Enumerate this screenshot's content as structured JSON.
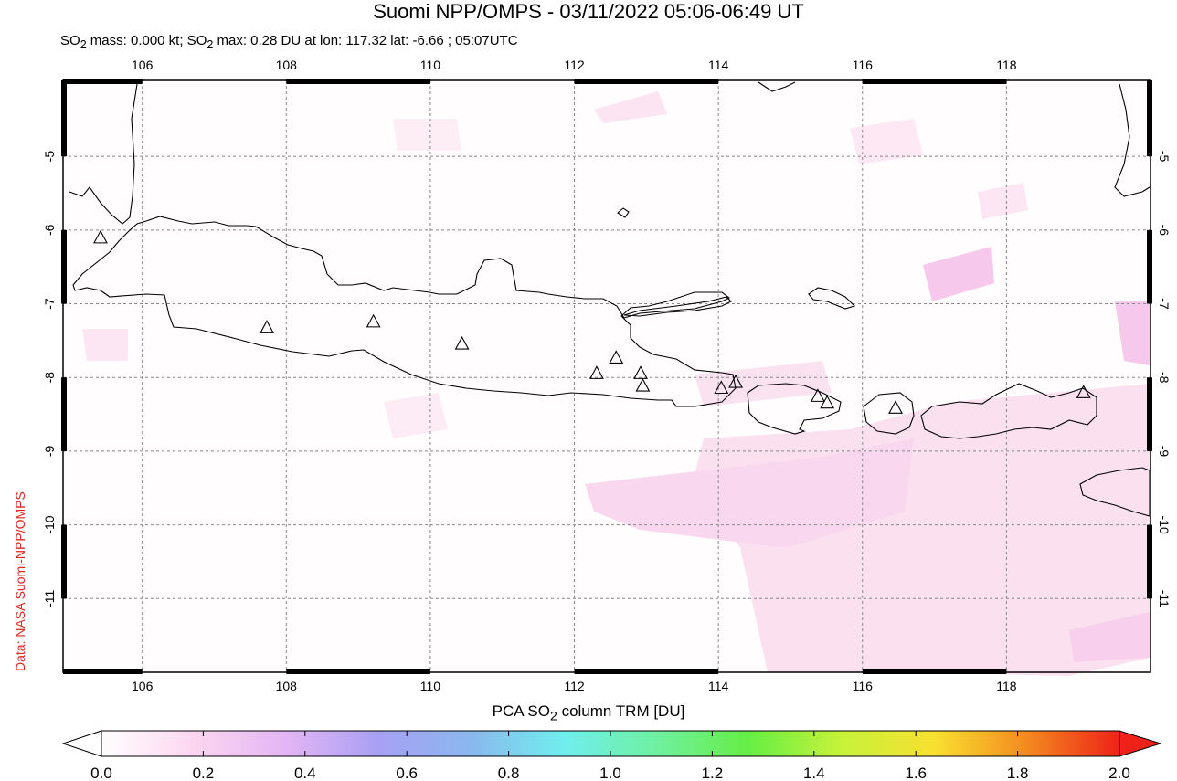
{
  "header": {
    "title": "Suomi NPP/OMPS - 03/11/2022 05:06-06:49 UT",
    "subtitle_html": "SO<sub>2</sub> mass: 0.000 kt; SO<sub>2</sub> max: 0.28 DU at lon: 117.32 lat: -6.66 ; 05:07UTC"
  },
  "credit": "Data: NASA Suomi-NPP/OMPS",
  "map": {
    "lon_range": [
      104.9,
      120.0
    ],
    "lat_range": [
      -12.0,
      -3.97
    ],
    "lon_ticks": [
      106,
      108,
      110,
      112,
      114,
      116,
      118
    ],
    "lat_ticks": [
      -5,
      -6,
      -7,
      -8,
      -9,
      -10,
      -11
    ],
    "colors": {
      "frame": "#000000",
      "grid": "#888888",
      "coast": "#000000",
      "low_so2": "#fbe0f0",
      "mid_so2": "#f6c8ec"
    },
    "volcanoes": [
      {
        "lon": 105.42,
        "lat": -6.1
      },
      {
        "lon": 107.73,
        "lat": -7.32
      },
      {
        "lon": 109.21,
        "lat": -7.24
      },
      {
        "lon": 110.44,
        "lat": -7.54
      },
      {
        "lon": 112.31,
        "lat": -7.94
      },
      {
        "lon": 112.58,
        "lat": -7.73
      },
      {
        "lon": 112.92,
        "lat": -7.94
      },
      {
        "lon": 112.95,
        "lat": -8.11
      },
      {
        "lon": 114.04,
        "lat": -8.14
      },
      {
        "lon": 114.24,
        "lat": -8.06
      },
      {
        "lon": 115.38,
        "lat": -8.25
      },
      {
        "lon": 115.51,
        "lat": -8.34
      },
      {
        "lon": 116.46,
        "lat": -8.41
      },
      {
        "lon": 119.07,
        "lat": -8.2
      }
    ]
  },
  "colorbar": {
    "title_html": "PCA SO<sub>2</sub> column TRM [DU]",
    "ticks": [
      "0.0",
      "0.2",
      "0.4",
      "0.6",
      "0.8",
      "1.0",
      "1.2",
      "1.4",
      "1.6",
      "1.8",
      "2.0"
    ],
    "stops": [
      "#ffffff",
      "#fcd6f0",
      "#e3b5f5",
      "#a8a0f4",
      "#8ab8ee",
      "#70eeee",
      "#6ff0a0",
      "#66ee44",
      "#c8f23a",
      "#f8e030",
      "#f48a20",
      "#ee2218"
    ]
  }
}
